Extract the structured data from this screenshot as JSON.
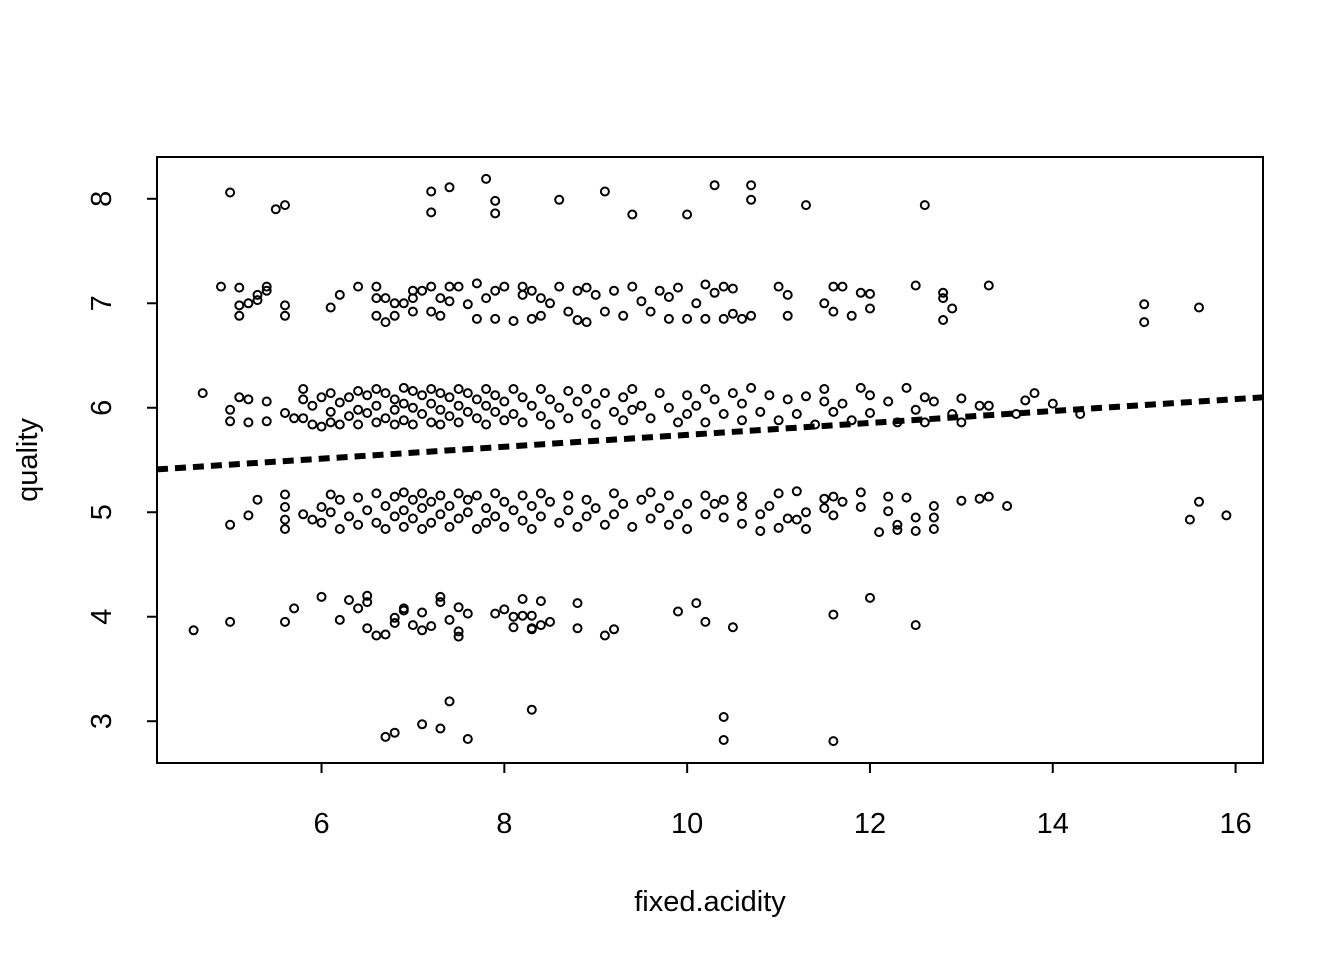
{
  "chart_data": {
    "type": "scatter",
    "title": "",
    "xlabel": "fixed.acidity",
    "ylabel": "quality",
    "xlim": [
      4.2,
      16.3
    ],
    "ylim": [
      2.6,
      8.4
    ],
    "xticks": [
      6,
      8,
      10,
      12,
      14,
      16
    ],
    "yticks": [
      3,
      4,
      5,
      6,
      7,
      8
    ],
    "grid": false,
    "legend": "none",
    "point_color": "#000000",
    "trend_line": {
      "style": "dashed",
      "color": "#000000",
      "from": [
        4.2,
        5.41
      ],
      "to": [
        16.3,
        6.1
      ]
    },
    "points": [
      [
        5.0,
        8.06
      ],
      [
        5.5,
        7.9
      ],
      [
        5.6,
        7.94
      ],
      [
        7.2,
        8.07
      ],
      [
        7.2,
        7.87
      ],
      [
        7.4,
        8.11
      ],
      [
        7.8,
        8.19
      ],
      [
        7.9,
        7.98
      ],
      [
        7.9,
        7.86
      ],
      [
        8.6,
        7.99
      ],
      [
        9.1,
        8.07
      ],
      [
        9.4,
        7.85
      ],
      [
        10.0,
        7.85
      ],
      [
        10.3,
        8.13
      ],
      [
        10.7,
        8.13
      ],
      [
        10.7,
        7.99
      ],
      [
        11.3,
        7.94
      ],
      [
        12.6,
        7.94
      ],
      [
        4.9,
        7.16
      ],
      [
        5.1,
        7.15
      ],
      [
        5.1,
        6.98
      ],
      [
        5.1,
        6.88
      ],
      [
        5.2,
        7.0
      ],
      [
        5.3,
        7.03
      ],
      [
        5.3,
        7.08
      ],
      [
        5.4,
        7.12
      ],
      [
        5.4,
        7.16
      ],
      [
        5.6,
        6.98
      ],
      [
        5.6,
        6.88
      ],
      [
        6.1,
        6.96
      ],
      [
        6.2,
        7.08
      ],
      [
        6.4,
        7.16
      ],
      [
        6.6,
        7.16
      ],
      [
        6.6,
        7.05
      ],
      [
        6.6,
        6.88
      ],
      [
        6.7,
        7.05
      ],
      [
        6.7,
        6.82
      ],
      [
        6.8,
        7.0
      ],
      [
        6.8,
        6.88
      ],
      [
        6.9,
        7.0
      ],
      [
        7.0,
        7.12
      ],
      [
        7.0,
        7.05
      ],
      [
        7.0,
        6.92
      ],
      [
        7.1,
        7.12
      ],
      [
        7.2,
        7.16
      ],
      [
        7.2,
        6.92
      ],
      [
        7.3,
        7.05
      ],
      [
        7.3,
        6.88
      ],
      [
        7.4,
        7.16
      ],
      [
        7.4,
        7.02
      ],
      [
        7.5,
        7.16
      ],
      [
        7.6,
        6.99
      ],
      [
        7.7,
        7.19
      ],
      [
        7.7,
        6.85
      ],
      [
        7.8,
        7.05
      ],
      [
        7.9,
        7.12
      ],
      [
        7.9,
        6.85
      ],
      [
        8.0,
        7.16
      ],
      [
        8.1,
        6.83
      ],
      [
        8.2,
        7.08
      ],
      [
        8.2,
        7.16
      ],
      [
        8.3,
        7.12
      ],
      [
        8.3,
        6.85
      ],
      [
        8.4,
        7.05
      ],
      [
        8.4,
        6.88
      ],
      [
        8.5,
        7.0
      ],
      [
        8.6,
        7.16
      ],
      [
        8.7,
        6.92
      ],
      [
        8.8,
        7.12
      ],
      [
        8.8,
        6.84
      ],
      [
        8.9,
        7.15
      ],
      [
        8.9,
        6.82
      ],
      [
        9.0,
        7.08
      ],
      [
        9.1,
        6.92
      ],
      [
        9.2,
        7.12
      ],
      [
        9.3,
        6.88
      ],
      [
        9.4,
        7.16
      ],
      [
        9.5,
        7.02
      ],
      [
        9.6,
        6.92
      ],
      [
        9.7,
        7.12
      ],
      [
        9.8,
        6.85
      ],
      [
        9.8,
        7.06
      ],
      [
        9.9,
        7.15
      ],
      [
        10.0,
        6.85
      ],
      [
        10.1,
        7.0
      ],
      [
        10.2,
        7.18
      ],
      [
        10.2,
        6.85
      ],
      [
        10.3,
        7.1
      ],
      [
        10.4,
        6.85
      ],
      [
        10.4,
        7.16
      ],
      [
        10.5,
        7.14
      ],
      [
        10.5,
        6.9
      ],
      [
        10.6,
        6.85
      ],
      [
        10.7,
        6.88
      ],
      [
        11.0,
        7.16
      ],
      [
        11.1,
        7.08
      ],
      [
        11.1,
        6.88
      ],
      [
        11.5,
        7.0
      ],
      [
        11.6,
        6.92
      ],
      [
        11.6,
        7.16
      ],
      [
        11.7,
        7.16
      ],
      [
        11.8,
        6.88
      ],
      [
        11.9,
        7.1
      ],
      [
        12.0,
        6.95
      ],
      [
        12.0,
        7.09
      ],
      [
        12.5,
        7.17
      ],
      [
        12.8,
        7.1
      ],
      [
        12.8,
        6.84
      ],
      [
        12.8,
        7.05
      ],
      [
        12.9,
        6.95
      ],
      [
        13.3,
        7.17
      ],
      [
        15.0,
        6.99
      ],
      [
        15.0,
        6.82
      ],
      [
        15.6,
        6.96
      ],
      [
        4.7,
        6.14
      ],
      [
        5.0,
        5.98
      ],
      [
        5.0,
        5.87
      ],
      [
        5.1,
        6.1
      ],
      [
        5.2,
        5.86
      ],
      [
        5.2,
        6.08
      ],
      [
        5.4,
        6.06
      ],
      [
        5.4,
        5.87
      ],
      [
        5.6,
        5.95
      ],
      [
        5.7,
        5.9
      ],
      [
        5.8,
        6.18
      ],
      [
        5.8,
        6.08
      ],
      [
        5.8,
        5.9
      ],
      [
        5.9,
        5.84
      ],
      [
        5.9,
        6.02
      ],
      [
        6.0,
        6.1
      ],
      [
        6.0,
        5.82
      ],
      [
        6.1,
        6.14
      ],
      [
        6.1,
        5.96
      ],
      [
        6.1,
        5.86
      ],
      [
        6.2,
        6.05
      ],
      [
        6.2,
        5.84
      ],
      [
        6.3,
        6.1
      ],
      [
        6.3,
        5.92
      ],
      [
        6.4,
        6.16
      ],
      [
        6.4,
        5.98
      ],
      [
        6.4,
        5.84
      ],
      [
        6.5,
        6.12
      ],
      [
        6.5,
        5.95
      ],
      [
        6.6,
        6.18
      ],
      [
        6.6,
        6.02
      ],
      [
        6.6,
        5.86
      ],
      [
        6.7,
        6.14
      ],
      [
        6.7,
        5.9
      ],
      [
        6.8,
        6.08
      ],
      [
        6.8,
        5.98
      ],
      [
        6.8,
        5.84
      ],
      [
        6.9,
        6.19
      ],
      [
        6.9,
        6.04
      ],
      [
        6.9,
        5.88
      ],
      [
        7.0,
        6.16
      ],
      [
        7.0,
        6.0
      ],
      [
        7.0,
        5.84
      ],
      [
        7.1,
        6.12
      ],
      [
        7.1,
        5.94
      ],
      [
        7.2,
        6.18
      ],
      [
        7.2,
        6.04
      ],
      [
        7.2,
        5.86
      ],
      [
        7.3,
        6.14
      ],
      [
        7.3,
        5.98
      ],
      [
        7.3,
        5.84
      ],
      [
        7.4,
        6.1
      ],
      [
        7.4,
        5.92
      ],
      [
        7.5,
        6.18
      ],
      [
        7.5,
        6.02
      ],
      [
        7.5,
        5.86
      ],
      [
        7.6,
        6.14
      ],
      [
        7.6,
        5.96
      ],
      [
        7.7,
        6.08
      ],
      [
        7.7,
        5.9
      ],
      [
        7.8,
        6.18
      ],
      [
        7.8,
        6.02
      ],
      [
        7.8,
        5.84
      ],
      [
        7.9,
        6.12
      ],
      [
        7.9,
        5.96
      ],
      [
        8.0,
        6.06
      ],
      [
        8.0,
        5.88
      ],
      [
        8.1,
        6.18
      ],
      [
        8.1,
        5.94
      ],
      [
        8.2,
        6.1
      ],
      [
        8.2,
        5.86
      ],
      [
        8.3,
        6.02
      ],
      [
        8.4,
        6.18
      ],
      [
        8.4,
        5.92
      ],
      [
        8.5,
        6.08
      ],
      [
        8.5,
        5.84
      ],
      [
        8.6,
        6.0
      ],
      [
        8.7,
        6.16
      ],
      [
        8.7,
        5.9
      ],
      [
        8.8,
        6.06
      ],
      [
        8.9,
        5.94
      ],
      [
        8.9,
        6.18
      ],
      [
        9.0,
        6.04
      ],
      [
        9.0,
        5.84
      ],
      [
        9.1,
        6.14
      ],
      [
        9.2,
        5.96
      ],
      [
        9.3,
        6.1
      ],
      [
        9.3,
        5.88
      ],
      [
        9.4,
        6.18
      ],
      [
        9.4,
        5.98
      ],
      [
        9.5,
        6.02
      ],
      [
        9.6,
        5.9
      ],
      [
        9.7,
        6.14
      ],
      [
        9.8,
        6.0
      ],
      [
        9.9,
        5.86
      ],
      [
        10.0,
        6.12
      ],
      [
        10.0,
        5.94
      ],
      [
        10.1,
        6.02
      ],
      [
        10.2,
        6.18
      ],
      [
        10.2,
        5.86
      ],
      [
        10.3,
        6.08
      ],
      [
        10.4,
        5.94
      ],
      [
        10.5,
        6.14
      ],
      [
        10.6,
        5.88
      ],
      [
        10.6,
        6.04
      ],
      [
        10.7,
        6.19
      ],
      [
        10.8,
        5.96
      ],
      [
        10.9,
        6.12
      ],
      [
        11.0,
        5.88
      ],
      [
        11.1,
        6.08
      ],
      [
        11.2,
        5.94
      ],
      [
        11.3,
        6.11
      ],
      [
        11.4,
        5.84
      ],
      [
        11.5,
        6.06
      ],
      [
        11.5,
        6.18
      ],
      [
        11.6,
        5.96
      ],
      [
        11.7,
        6.04
      ],
      [
        11.8,
        5.88
      ],
      [
        11.9,
        6.19
      ],
      [
        12.0,
        6.12
      ],
      [
        12.0,
        5.95
      ],
      [
        12.2,
        6.06
      ],
      [
        12.3,
        5.86
      ],
      [
        12.4,
        6.19
      ],
      [
        12.5,
        5.98
      ],
      [
        12.6,
        6.1
      ],
      [
        12.6,
        5.86
      ],
      [
        12.7,
        6.06
      ],
      [
        12.9,
        5.94
      ],
      [
        13.0,
        6.09
      ],
      [
        13.0,
        5.86
      ],
      [
        13.2,
        6.02
      ],
      [
        13.3,
        6.02
      ],
      [
        13.6,
        5.94
      ],
      [
        13.7,
        6.07
      ],
      [
        13.8,
        6.14
      ],
      [
        14.0,
        6.04
      ],
      [
        14.3,
        5.94
      ],
      [
        5.0,
        4.88
      ],
      [
        5.2,
        4.97
      ],
      [
        5.3,
        5.12
      ],
      [
        5.6,
        5.17
      ],
      [
        5.6,
        5.05
      ],
      [
        5.6,
        4.93
      ],
      [
        5.6,
        4.84
      ],
      [
        5.8,
        4.98
      ],
      [
        5.9,
        4.93
      ],
      [
        6.0,
        5.05
      ],
      [
        6.0,
        4.9
      ],
      [
        6.1,
        5.17
      ],
      [
        6.1,
        5.0
      ],
      [
        6.2,
        4.84
      ],
      [
        6.2,
        5.12
      ],
      [
        6.3,
        4.96
      ],
      [
        6.4,
        5.14
      ],
      [
        6.4,
        4.88
      ],
      [
        6.5,
        5.02
      ],
      [
        6.6,
        5.18
      ],
      [
        6.6,
        4.9
      ],
      [
        6.7,
        5.06
      ],
      [
        6.7,
        4.84
      ],
      [
        6.8,
        5.15
      ],
      [
        6.8,
        4.96
      ],
      [
        6.9,
        5.19
      ],
      [
        6.9,
        5.02
      ],
      [
        6.9,
        4.86
      ],
      [
        7.0,
        5.12
      ],
      [
        7.0,
        4.94
      ],
      [
        7.1,
        5.18
      ],
      [
        7.1,
        5.04
      ],
      [
        7.1,
        4.84
      ],
      [
        7.2,
        5.1
      ],
      [
        7.2,
        4.9
      ],
      [
        7.3,
        5.16
      ],
      [
        7.3,
        4.98
      ],
      [
        7.4,
        5.06
      ],
      [
        7.4,
        4.86
      ],
      [
        7.5,
        5.18
      ],
      [
        7.5,
        4.94
      ],
      [
        7.6,
        5.12
      ],
      [
        7.6,
        5.0
      ],
      [
        7.7,
        4.84
      ],
      [
        7.7,
        5.16
      ],
      [
        7.8,
        5.04
      ],
      [
        7.8,
        4.9
      ],
      [
        7.9,
        5.18
      ],
      [
        7.9,
        4.96
      ],
      [
        8.0,
        5.1
      ],
      [
        8.0,
        4.86
      ],
      [
        8.1,
        5.02
      ],
      [
        8.2,
        5.16
      ],
      [
        8.2,
        4.92
      ],
      [
        8.3,
        5.06
      ],
      [
        8.3,
        4.84
      ],
      [
        8.4,
        5.18
      ],
      [
        8.4,
        4.96
      ],
      [
        8.5,
        5.1
      ],
      [
        8.6,
        4.9
      ],
      [
        8.7,
        5.16
      ],
      [
        8.7,
        5.02
      ],
      [
        8.8,
        4.86
      ],
      [
        8.9,
        5.12
      ],
      [
        8.9,
        4.96
      ],
      [
        9.0,
        5.04
      ],
      [
        9.1,
        4.88
      ],
      [
        9.2,
        5.18
      ],
      [
        9.2,
        4.98
      ],
      [
        9.3,
        5.08
      ],
      [
        9.4,
        4.86
      ],
      [
        9.5,
        5.12
      ],
      [
        9.6,
        4.94
      ],
      [
        9.6,
        5.19
      ],
      [
        9.7,
        5.04
      ],
      [
        9.8,
        4.88
      ],
      [
        9.8,
        5.16
      ],
      [
        9.9,
        4.98
      ],
      [
        10.0,
        5.08
      ],
      [
        10.0,
        4.84
      ],
      [
        10.2,
        5.16
      ],
      [
        10.2,
        4.98
      ],
      [
        10.3,
        5.08
      ],
      [
        10.4,
        4.95
      ],
      [
        10.4,
        5.12
      ],
      [
        10.6,
        5.06
      ],
      [
        10.6,
        5.15
      ],
      [
        10.6,
        4.89
      ],
      [
        10.8,
        4.98
      ],
      [
        10.8,
        4.82
      ],
      [
        10.9,
        5.06
      ],
      [
        11.0,
        4.85
      ],
      [
        11.0,
        5.18
      ],
      [
        11.1,
        4.94
      ],
      [
        11.2,
        5.2
      ],
      [
        11.2,
        4.93
      ],
      [
        11.3,
        4.84
      ],
      [
        11.3,
        5.0
      ],
      [
        11.5,
        5.13
      ],
      [
        11.5,
        5.04
      ],
      [
        11.6,
        5.15
      ],
      [
        11.6,
        4.97
      ],
      [
        11.7,
        5.1
      ],
      [
        11.9,
        5.19
      ],
      [
        11.9,
        5.05
      ],
      [
        12.1,
        4.81
      ],
      [
        12.2,
        5.15
      ],
      [
        12.2,
        5.01
      ],
      [
        12.3,
        4.88
      ],
      [
        12.3,
        4.83
      ],
      [
        12.4,
        5.14
      ],
      [
        12.5,
        4.95
      ],
      [
        12.5,
        4.82
      ],
      [
        12.7,
        5.06
      ],
      [
        12.7,
        4.95
      ],
      [
        12.7,
        4.84
      ],
      [
        13.0,
        5.11
      ],
      [
        13.2,
        5.13
      ],
      [
        13.3,
        5.15
      ],
      [
        13.5,
        5.06
      ],
      [
        15.5,
        4.93
      ],
      [
        15.6,
        5.1
      ],
      [
        15.9,
        4.97
      ],
      [
        4.6,
        3.87
      ],
      [
        5.0,
        3.95
      ],
      [
        5.6,
        3.95
      ],
      [
        5.7,
        4.08
      ],
      [
        6.0,
        4.19
      ],
      [
        6.2,
        3.97
      ],
      [
        6.3,
        4.16
      ],
      [
        6.4,
        4.08
      ],
      [
        6.5,
        4.2
      ],
      [
        6.5,
        4.14
      ],
      [
        6.5,
        3.89
      ],
      [
        6.6,
        3.82
      ],
      [
        6.7,
        3.83
      ],
      [
        6.8,
        3.99
      ],
      [
        6.8,
        3.94
      ],
      [
        6.9,
        4.08
      ],
      [
        6.9,
        4.06
      ],
      [
        7.0,
        3.92
      ],
      [
        7.1,
        4.04
      ],
      [
        7.1,
        3.87
      ],
      [
        7.2,
        3.91
      ],
      [
        7.3,
        4.19
      ],
      [
        7.3,
        4.14
      ],
      [
        7.4,
        3.97
      ],
      [
        7.5,
        4.09
      ],
      [
        7.5,
        3.86
      ],
      [
        7.5,
        3.81
      ],
      [
        7.6,
        4.03
      ],
      [
        7.9,
        4.03
      ],
      [
        8.0,
        4.07
      ],
      [
        8.1,
        3.9
      ],
      [
        8.1,
        4.0
      ],
      [
        8.2,
        4.17
      ],
      [
        8.2,
        4.01
      ],
      [
        8.3,
        3.88
      ],
      [
        8.3,
        3.89
      ],
      [
        8.3,
        4.01
      ],
      [
        8.4,
        4.15
      ],
      [
        8.4,
        3.92
      ],
      [
        8.5,
        3.95
      ],
      [
        8.8,
        4.13
      ],
      [
        8.8,
        3.89
      ],
      [
        9.1,
        3.82
      ],
      [
        9.2,
        3.88
      ],
      [
        9.9,
        4.05
      ],
      [
        10.1,
        4.13
      ],
      [
        10.2,
        3.95
      ],
      [
        10.5,
        3.9
      ],
      [
        11.6,
        4.02
      ],
      [
        12.0,
        4.18
      ],
      [
        12.5,
        3.92
      ],
      [
        6.7,
        2.85
      ],
      [
        6.8,
        2.89
      ],
      [
        7.1,
        2.97
      ],
      [
        7.3,
        2.93
      ],
      [
        7.4,
        3.19
      ],
      [
        7.6,
        2.83
      ],
      [
        8.3,
        3.11
      ],
      [
        10.4,
        3.04
      ],
      [
        10.4,
        2.82
      ],
      [
        11.6,
        2.81
      ]
    ]
  }
}
